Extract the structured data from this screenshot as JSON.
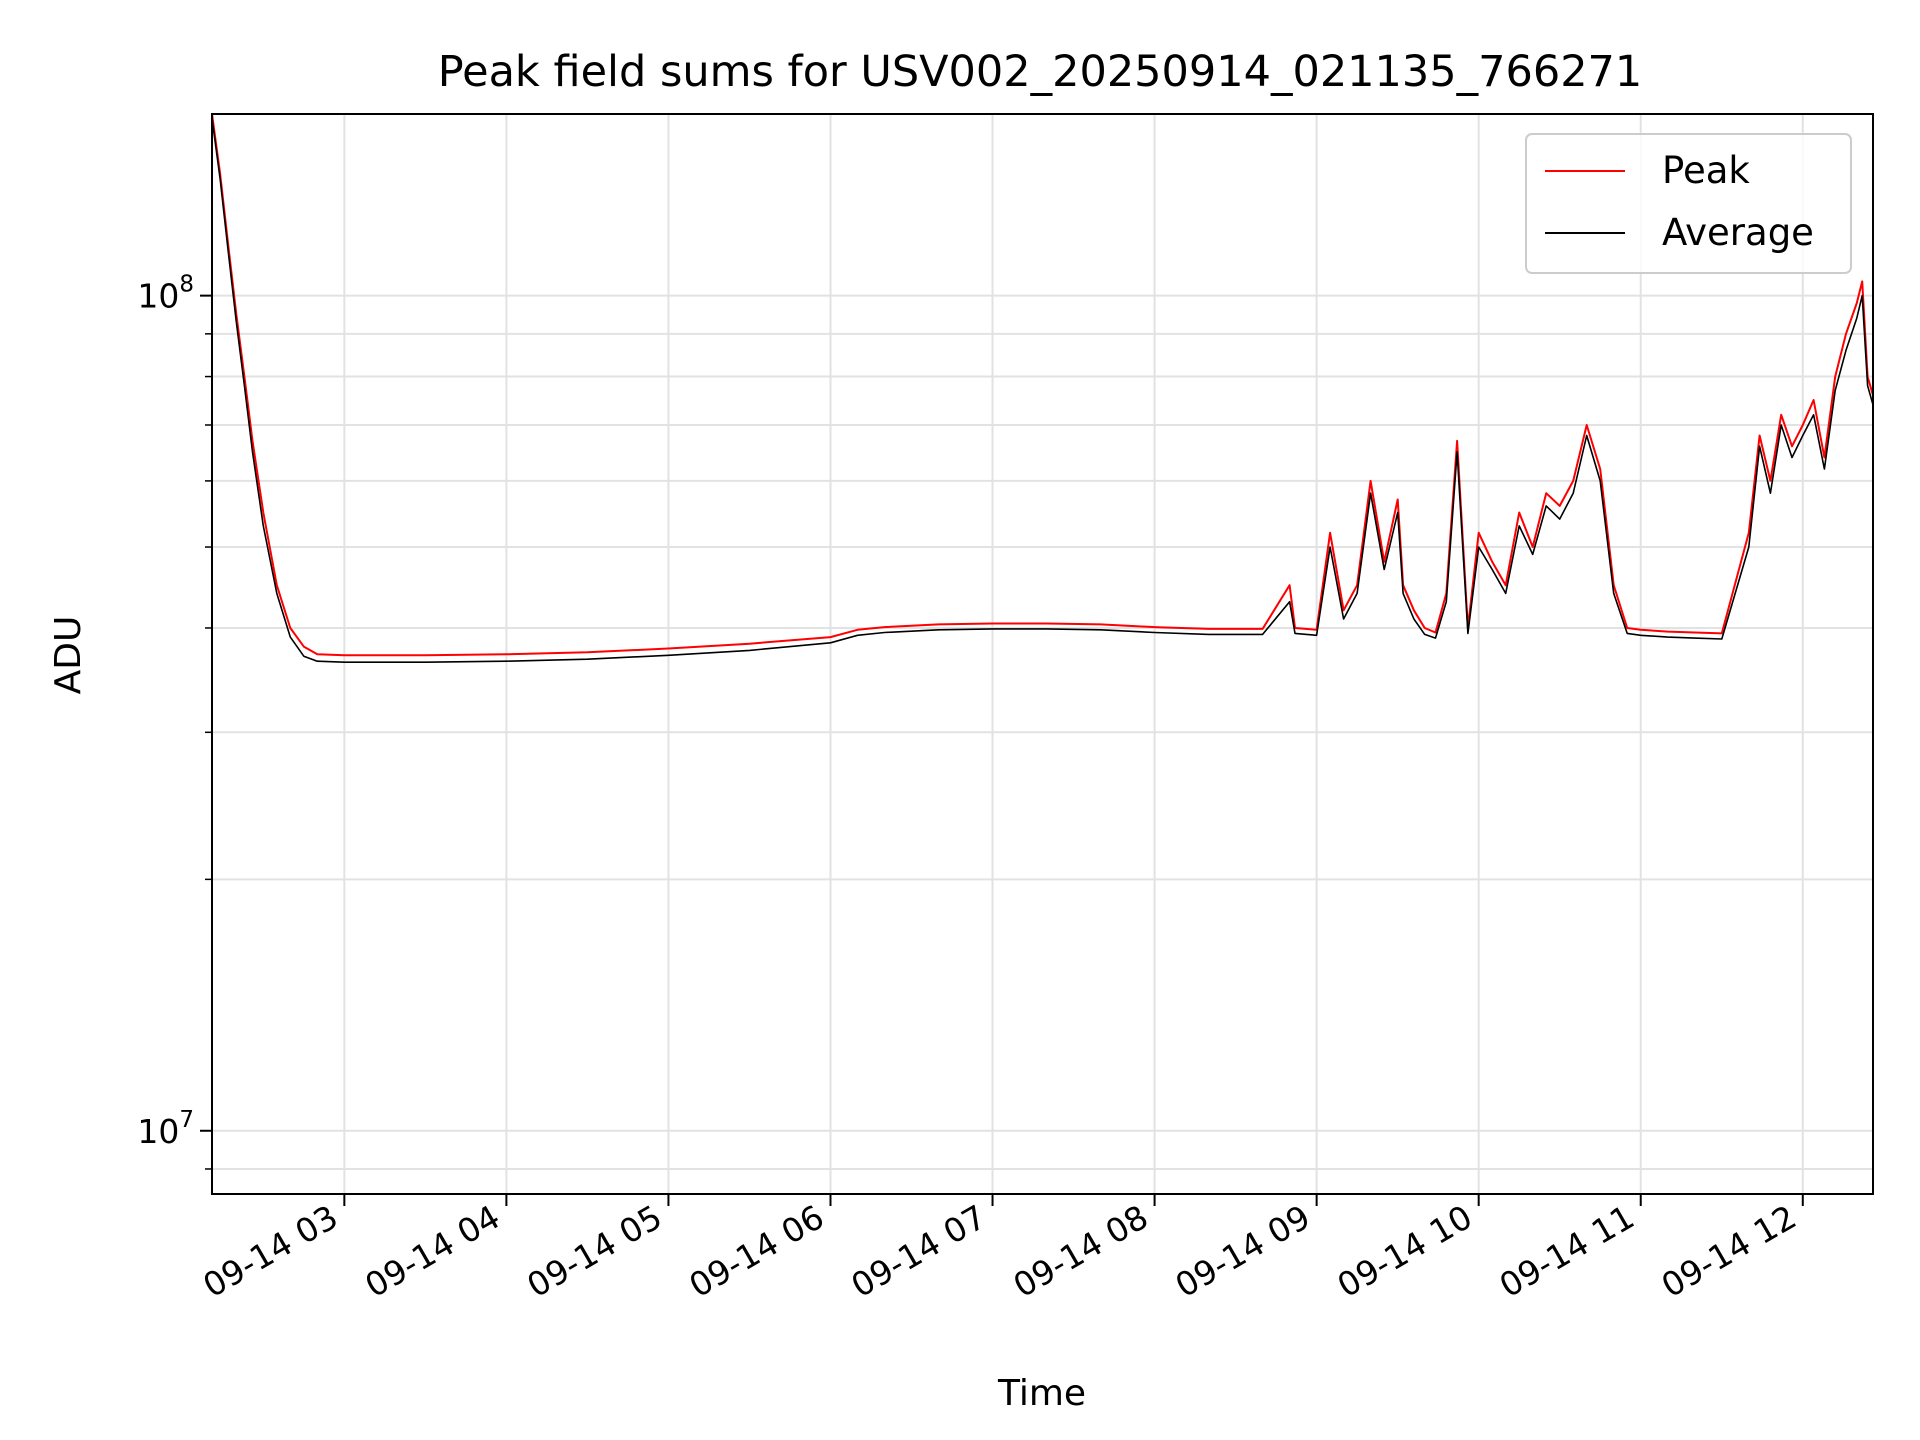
{
  "chart_data": {
    "type": "line",
    "title": "Peak field sums for USV002_20250914_021135_766271",
    "xlabel": "Time",
    "ylabel": "ADU",
    "yscale": "log",
    "ylim": [
      8400000,
      165000000
    ],
    "xlim": [
      "2025-09-14 02:11",
      "2025-09-14 12:26"
    ],
    "x_ticks": [
      "09-14 03",
      "09-14 04",
      "09-14 05",
      "09-14 06",
      "09-14 07",
      "09-14 08",
      "09-14 09",
      "09-14 10",
      "09-14 11",
      "09-14 12"
    ],
    "y_ticks": [
      {
        "base": "10",
        "exp": "7",
        "value": 10000000
      },
      {
        "base": "10",
        "exp": "8",
        "value": 100000000
      }
    ],
    "grid": true,
    "legend_position": "top-right",
    "series": [
      {
        "name": "Peak",
        "color": "#ff0000",
        "x": [
          "02:11",
          "02:14",
          "02:17",
          "02:20",
          "02:23",
          "02:26",
          "02:30",
          "02:35",
          "02:40",
          "02:45",
          "02:50",
          "03:00",
          "03:30",
          "04:00",
          "04:30",
          "05:00",
          "05:30",
          "06:00",
          "06:10",
          "06:20",
          "06:40",
          "07:00",
          "07:20",
          "07:40",
          "08:00",
          "08:20",
          "08:40",
          "08:50",
          "08:52",
          "09:00",
          "09:05",
          "09:10",
          "09:15",
          "09:20",
          "09:25",
          "09:30",
          "09:32",
          "09:36",
          "09:40",
          "09:44",
          "09:48",
          "09:52",
          "09:56",
          "10:00",
          "10:05",
          "10:10",
          "10:15",
          "10:20",
          "10:25",
          "10:30",
          "10:35",
          "10:40",
          "10:45",
          "10:50",
          "10:55",
          "11:00",
          "11:10",
          "11:20",
          "11:30",
          "11:40",
          "11:44",
          "11:48",
          "11:52",
          "11:56",
          "12:00",
          "12:04",
          "12:08",
          "12:12",
          "12:16",
          "12:20",
          "12:22",
          "12:24",
          "12:26"
        ],
        "y": [
          165000000,
          140000000,
          115000000,
          95000000,
          80000000,
          67000000,
          55000000,
          45000000,
          40000000,
          38000000,
          37200000,
          37100000,
          37100000,
          37200000,
          37400000,
          37800000,
          38300000,
          39000000,
          39800000,
          40100000,
          40400000,
          40500000,
          40500000,
          40400000,
          40100000,
          39900000,
          39900000,
          45000000,
          40000000,
          39800000,
          52000000,
          42000000,
          45000000,
          60000000,
          48000000,
          57000000,
          45000000,
          42000000,
          40000000,
          39500000,
          44000000,
          67000000,
          40000000,
          52000000,
          48000000,
          45000000,
          55000000,
          50000000,
          58000000,
          56000000,
          60000000,
          70000000,
          62000000,
          45000000,
          40000000,
          39800000,
          39600000,
          39500000,
          39400000,
          52000000,
          68000000,
          60000000,
          72000000,
          66000000,
          70000000,
          75000000,
          64000000,
          80000000,
          90000000,
          98000000,
          104000000,
          80000000,
          76000000
        ]
      },
      {
        "name": "Average",
        "color": "#000000",
        "x": [
          "02:11",
          "02:14",
          "02:17",
          "02:20",
          "02:23",
          "02:26",
          "02:30",
          "02:35",
          "02:40",
          "02:45",
          "02:50",
          "03:00",
          "03:30",
          "04:00",
          "04:30",
          "05:00",
          "05:30",
          "06:00",
          "06:10",
          "06:20",
          "06:40",
          "07:00",
          "07:20",
          "07:40",
          "08:00",
          "08:20",
          "08:40",
          "08:50",
          "08:52",
          "09:00",
          "09:05",
          "09:10",
          "09:15",
          "09:20",
          "09:25",
          "09:30",
          "09:32",
          "09:36",
          "09:40",
          "09:44",
          "09:48",
          "09:52",
          "09:56",
          "10:00",
          "10:05",
          "10:10",
          "10:15",
          "10:20",
          "10:25",
          "10:30",
          "10:35",
          "10:40",
          "10:45",
          "10:50",
          "10:55",
          "11:00",
          "11:10",
          "11:20",
          "11:30",
          "11:40",
          "11:44",
          "11:48",
          "11:52",
          "11:56",
          "12:00",
          "12:04",
          "12:08",
          "12:12",
          "12:16",
          "12:20",
          "12:22",
          "12:24",
          "12:26"
        ],
        "y": [
          163000000,
          138000000,
          113000000,
          93000000,
          78000000,
          65000000,
          53000000,
          44000000,
          39000000,
          37000000,
          36500000,
          36400000,
          36400000,
          36500000,
          36700000,
          37100000,
          37600000,
          38400000,
          39200000,
          39500000,
          39800000,
          39900000,
          39900000,
          39800000,
          39500000,
          39300000,
          39300000,
          43000000,
          39400000,
          39200000,
          50000000,
          41000000,
          44000000,
          58000000,
          47000000,
          55000000,
          44000000,
          41000000,
          39300000,
          38900000,
          43000000,
          65000000,
          39400000,
          50000000,
          47000000,
          44000000,
          53000000,
          49000000,
          56000000,
          54000000,
          58000000,
          68000000,
          60000000,
          44000000,
          39400000,
          39200000,
          39000000,
          38900000,
          38800000,
          50000000,
          66000000,
          58000000,
          70000000,
          64000000,
          68000000,
          72000000,
          62000000,
          77000000,
          86000000,
          94000000,
          100000000,
          78000000,
          74000000
        ]
      }
    ]
  }
}
